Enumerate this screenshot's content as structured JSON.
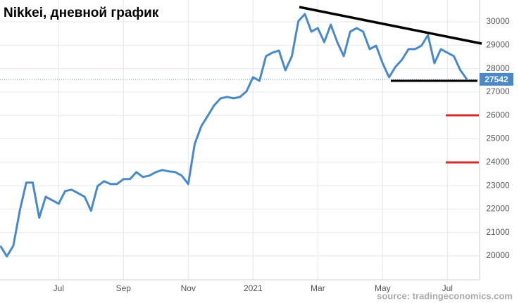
{
  "chart_data": {
    "type": "line",
    "title": "Nikkei, дневной график",
    "source": "source: tradingeconomics.com",
    "categories": [
      null,
      null,
      null,
      null,
      null,
      null,
      null,
      null,
      null,
      "Jul",
      null,
      null,
      null,
      null,
      null,
      null,
      null,
      null,
      null,
      "Sep",
      null,
      null,
      null,
      null,
      null,
      null,
      null,
      null,
      null,
      "Nov",
      null,
      null,
      null,
      null,
      null,
      null,
      null,
      null,
      null,
      "2021",
      null,
      null,
      null,
      null,
      null,
      null,
      null,
      null,
      null,
      "Mar",
      null,
      null,
      null,
      null,
      null,
      null,
      null,
      null,
      null,
      "May",
      null,
      null,
      null,
      null,
      null,
      null,
      null,
      null,
      null,
      "Jul",
      null,
      null,
      null
    ],
    "values": [
      20430,
      19980,
      20430,
      21930,
      23130,
      23130,
      21630,
      22530,
      22380,
      22230,
      22770,
      22830,
      22680,
      22530,
      21930,
      22980,
      23190,
      23070,
      23070,
      23280,
      23280,
      23580,
      23370,
      23430,
      23580,
      23670,
      23610,
      23580,
      23430,
      23070,
      24780,
      25530,
      25980,
      26430,
      26730,
      26790,
      26730,
      26790,
      27030,
      27630,
      27480,
      28530,
      28680,
      28770,
      27930,
      28530,
      30030,
      30330,
      29580,
      29730,
      29130,
      29880,
      29130,
      28530,
      29580,
      29730,
      29580,
      28830,
      28980,
      28230,
      27630,
      28080,
      28380,
      28830,
      28830,
      28980,
      29430,
      28230,
      28830,
      28680,
      28530,
      27930,
      27542
    ],
    "color": "#4a89c8",
    "ylim": [
      18980,
      30930
    ],
    "yticks": [
      20000,
      21000,
      22000,
      23000,
      24000,
      25000,
      26000,
      27000,
      28000,
      29000,
      30000
    ],
    "grid": true
  }
}
